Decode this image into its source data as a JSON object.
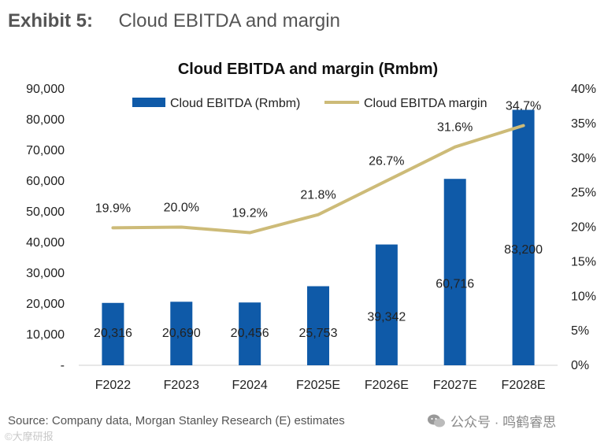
{
  "exhibit": {
    "number": "Exhibit 5:",
    "title": "Cloud EBITDA and margin"
  },
  "chart_data": {
    "type": "bar",
    "title": "Cloud EBITDA and margin (Rmbm)",
    "categories": [
      "F2022",
      "F2023",
      "F2024",
      "F2025E",
      "F2026E",
      "F2027E",
      "F2028E"
    ],
    "series": [
      {
        "name": "Cloud EBITDA (Rmbm)",
        "type": "bar",
        "axis": "left",
        "color": "#0f5aa8",
        "values": [
          20316,
          20690,
          20456,
          25753,
          39342,
          60716,
          83200
        ],
        "labels": [
          "20,316",
          "20,690",
          "20,456",
          "25,753",
          "39,342",
          "60,716",
          "83,200"
        ]
      },
      {
        "name": "Cloud EBITDA margin",
        "type": "line",
        "axis": "right",
        "color": "#cdbb78",
        "values": [
          19.9,
          20.0,
          19.2,
          21.8,
          26.7,
          31.6,
          34.7
        ],
        "labels": [
          "19.9%",
          "20.0%",
          "19.2%",
          "21.8%",
          "26.7%",
          "31.6%",
          "34.7%"
        ]
      }
    ],
    "y_left": {
      "ylim": [
        0,
        90000
      ],
      "ticks": [
        "-",
        "10,000",
        "20,000",
        "30,000",
        "40,000",
        "50,000",
        "60,000",
        "70,000",
        "80,000",
        "90,000"
      ]
    },
    "y_right": {
      "ylim": [
        0,
        40
      ],
      "ticks": [
        "0%",
        "5%",
        "10%",
        "15%",
        "20%",
        "25%",
        "30%",
        "35%",
        "40%"
      ]
    },
    "legend": "top",
    "grid": false
  },
  "footer": {
    "source": "Source: Company data, Morgan Stanley Research (E) estimates",
    "watermark": "公众号 · 鸣鹤睿思",
    "corner_mark": "©大摩研报"
  }
}
